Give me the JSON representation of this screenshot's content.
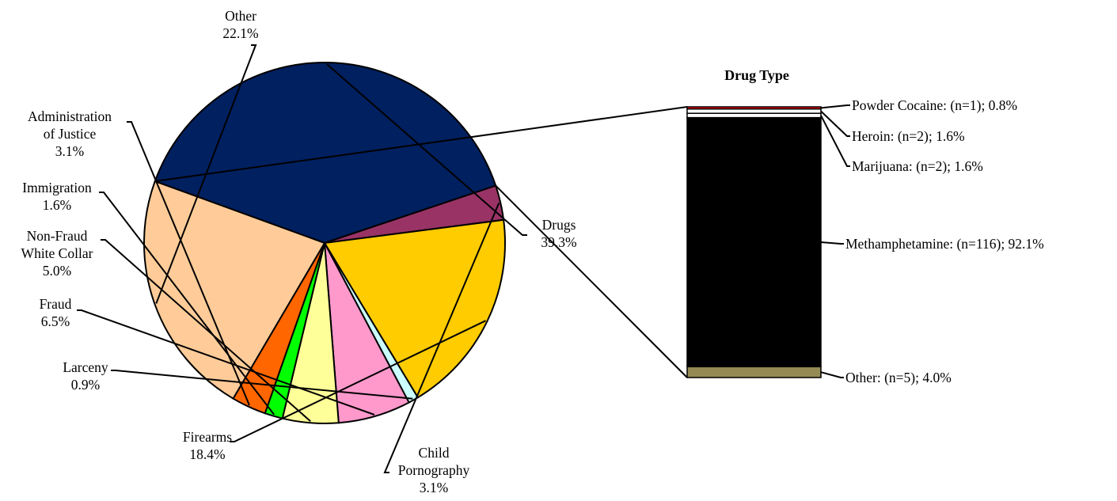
{
  "chart_data": [
    {
      "type": "pie",
      "title": "",
      "slices": [
        {
          "name": "Drugs",
          "value": 39.3,
          "label": "39.3%",
          "color": "#002060"
        },
        {
          "name": "Child Pornography",
          "value": 3.1,
          "label": "3.1%",
          "color": "#993366"
        },
        {
          "name": "Firearms",
          "value": 18.4,
          "label": "18.4%",
          "color": "#FFCC00"
        },
        {
          "name": "Larceny",
          "value": 0.9,
          "label": "0.9%",
          "color": "#CCFFFF"
        },
        {
          "name": "Fraud",
          "value": 6.5,
          "label": "6.5%",
          "color": "#FF99CC"
        },
        {
          "name": "Non-Fraud White Collar",
          "value": 5.0,
          "label": "5.0%",
          "color": "#FFFF99"
        },
        {
          "name": "Immigration",
          "value": 1.6,
          "label": "1.6%",
          "color": "#00FF00"
        },
        {
          "name": "Administration of Justice",
          "value": 3.1,
          "label": "3.1%",
          "color": "#FF6600"
        },
        {
          "name": "Other",
          "value": 22.1,
          "label": "22.1%",
          "color": "#FFCC99"
        }
      ]
    },
    {
      "type": "bar",
      "stacked": true,
      "title": "Drug Type",
      "segments": [
        {
          "name": "Powder Cocaine",
          "n": "(n=1)",
          "value": 0.8,
          "label": "Powder Cocaine:  (n=1); 0.8%",
          "color": "#FF0000"
        },
        {
          "name": "Heroin",
          "n": "(n=2)",
          "value": 1.6,
          "label": "Heroin:  (n=2); 1.6%",
          "color": "#FFFFFF"
        },
        {
          "name": "Marijuana",
          "n": "(n=2)",
          "value": 1.6,
          "label": "Marijuana:  (n=2); 1.6%",
          "color": "#FFFFFF"
        },
        {
          "name": "Methamphetamine",
          "n": "(n=116)",
          "value": 92.1,
          "label": "Methamphetamine:  (n=116); 92.1%",
          "color": "#000000"
        },
        {
          "name": "Other",
          "n": "(n=5)",
          "value": 4.0,
          "label": "Other:  (n=5); 4.0%",
          "color": "#948A54"
        }
      ]
    }
  ],
  "pie_labels": [
    {
      "key": "Drugs",
      "lines": [
        "Drugs",
        "39.3%"
      ]
    },
    {
      "key": "Child Pornography",
      "lines": [
        "Child",
        "Pornography",
        "3.1%"
      ]
    },
    {
      "key": "Firearms",
      "lines": [
        "Firearms",
        "18.4%"
      ]
    },
    {
      "key": "Larceny",
      "lines": [
        "Larceny",
        "0.9%"
      ]
    },
    {
      "key": "Fraud",
      "lines": [
        "Fraud",
        "6.5%"
      ]
    },
    {
      "key": "Non-Fraud White Collar",
      "lines": [
        "Non-Fraud",
        "White Collar",
        "5.0%"
      ]
    },
    {
      "key": "Immigration",
      "lines": [
        "Immigration",
        "1.6%"
      ]
    },
    {
      "key": "Administration of Justice",
      "lines": [
        "Administration",
        "of Justice",
        "3.1%"
      ]
    },
    {
      "key": "Other",
      "lines": [
        "Other",
        "22.1%"
      ]
    }
  ]
}
